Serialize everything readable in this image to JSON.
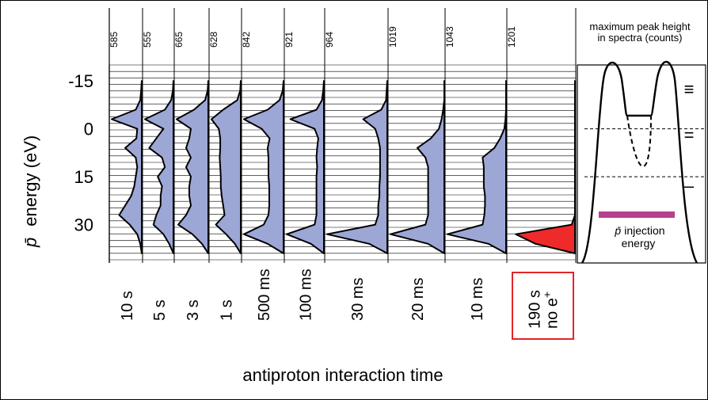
{
  "chart_data": {
    "type": "area",
    "title": "",
    "ylabel_main": "p̄ energy (eV)",
    "ylabel_p": "p̄",
    "ylabel_rest": "energy  (eV)",
    "xlabel": "antiproton interaction time",
    "ylim": [
      -20,
      42
    ],
    "y_ticks": [
      -15,
      0,
      15,
      30
    ],
    "y_tick_labels": [
      "-15",
      "0",
      "15",
      "30"
    ],
    "energy_points": [
      -15,
      -12,
      -9,
      -6,
      -3,
      0,
      3,
      6,
      9,
      12,
      15,
      18,
      21,
      24,
      27,
      30,
      33,
      36,
      39
    ],
    "panel_header": "maximum peak height\nin spectra (counts)",
    "panel_header_lines": [
      "maximum peak height",
      "in spectra (counts)"
    ],
    "series": [
      {
        "label": "10 s",
        "max_counts": "585",
        "color": "#9da7d6",
        "values": [
          0,
          0.02,
          0.05,
          0.2,
          1.0,
          0.15,
          0.18,
          0.55,
          0.2,
          0.15,
          0.2,
          0.25,
          0.35,
          0.55,
          0.75,
          0.4,
          0.15,
          0.05,
          0
        ]
      },
      {
        "label": "5 s",
        "max_counts": "555",
        "color": "#9da7d6",
        "values": [
          0,
          0.02,
          0.08,
          0.3,
          1.0,
          0.35,
          0.6,
          0.85,
          0.4,
          0.3,
          0.55,
          0.4,
          0.45,
          0.45,
          0.6,
          0.7,
          0.35,
          0.15,
          0
        ]
      },
      {
        "label": "3 s",
        "max_counts": "665",
        "color": "#9da7d6",
        "values": [
          0,
          0.02,
          0.1,
          0.45,
          1.0,
          0.55,
          0.6,
          0.7,
          0.55,
          0.7,
          0.55,
          0.6,
          0.6,
          0.55,
          0.7,
          0.95,
          0.5,
          0.2,
          0
        ]
      },
      {
        "label": "1 s",
        "max_counts": "628",
        "color": "#9da7d6",
        "values": [
          0,
          0.02,
          0.12,
          0.6,
          1.0,
          0.75,
          0.7,
          0.7,
          0.72,
          0.7,
          0.68,
          0.68,
          0.65,
          0.6,
          0.55,
          0.85,
          0.5,
          0.2,
          0
        ]
      },
      {
        "label": "500 ms",
        "max_counts": "842",
        "color": "#9da7d6",
        "values": [
          0,
          0.02,
          0.1,
          0.4,
          1.0,
          0.55,
          0.35,
          0.4,
          0.38,
          0.38,
          0.38,
          0.36,
          0.36,
          0.36,
          0.38,
          0.5,
          1.0,
          0.4,
          0
        ]
      },
      {
        "label": "100 ms",
        "max_counts": "921",
        "color": "#9da7d6",
        "values": [
          0,
          0.02,
          0.05,
          0.2,
          0.9,
          0.25,
          0.15,
          0.18,
          0.2,
          0.18,
          0.2,
          0.2,
          0.2,
          0.2,
          0.2,
          0.25,
          1.0,
          0.35,
          0
        ]
      },
      {
        "label": "30 ms",
        "max_counts": "964",
        "color": "#9da7d6",
        "values": [
          0,
          0.01,
          0.02,
          0.1,
          0.4,
          0.2,
          0.15,
          0.12,
          0.12,
          0.12,
          0.12,
          0.13,
          0.13,
          0.15,
          0.15,
          0.2,
          1.0,
          0.3,
          0
        ]
      },
      {
        "label": "20 ms",
        "max_counts": "1019",
        "color": "#9da7d6",
        "values": [
          0,
          0,
          0,
          0.02,
          0.05,
          0.1,
          0.25,
          0.5,
          0.35,
          0.3,
          0.3,
          0.3,
          0.3,
          0.3,
          0.3,
          0.35,
          1.0,
          0.3,
          0
        ]
      },
      {
        "label": "10 ms",
        "max_counts": "1043",
        "color": "#9da7d6",
        "values": [
          0,
          0,
          0,
          0,
          0.01,
          0.03,
          0.1,
          0.2,
          0.4,
          0.38,
          0.38,
          0.38,
          0.36,
          0.36,
          0.37,
          0.4,
          1.0,
          0.3,
          0
        ]
      },
      {
        "label": "190 s",
        "label2": "no e+",
        "label2_base": "no e",
        "label2_sup": "+",
        "max_counts": "1201",
        "color": "#ee2a2a",
        "values": [
          0,
          0,
          0,
          0,
          0,
          0,
          0,
          0,
          0,
          0,
          0,
          0,
          0,
          0,
          0,
          0.05,
          0.9,
          0.6,
          0
        ]
      }
    ],
    "highlight_color": "#e32326",
    "grid": true,
    "legend": "none"
  },
  "side_panel": {
    "injection_label": "p̄ injection",
    "injection_label_p": "p̄",
    "injection_label_rest": "injection",
    "injection_label2": "energy",
    "injection_color": "#b6418c",
    "stage_markers": [
      "≡",
      "=",
      "–"
    ]
  }
}
